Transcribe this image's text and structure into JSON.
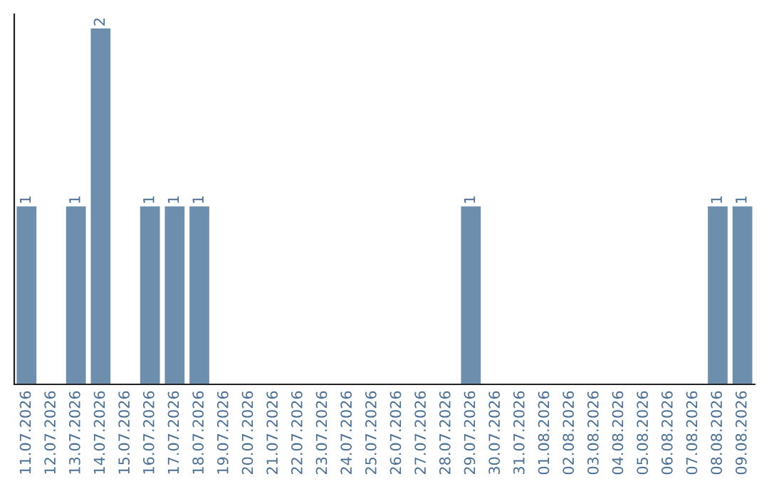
{
  "chart_data": {
    "type": "bar",
    "categories": [
      "11.07.2026",
      "12.07.2026",
      "13.07.2026",
      "14.07.2026",
      "15.07.2026",
      "16.07.2026",
      "17.07.2026",
      "18.07.2026",
      "19.07.2026",
      "20.07.2026",
      "21.07.2026",
      "22.07.2026",
      "23.07.2026",
      "24.07.2026",
      "25.07.2026",
      "26.07.2026",
      "27.07.2026",
      "28.07.2026",
      "29.07.2026",
      "30.07.2026",
      "31.07.2026",
      "01.08.2026",
      "02.08.2026",
      "03.08.2026",
      "04.08.2026",
      "05.08.2026",
      "06.08.2026",
      "07.08.2026",
      "08.08.2026",
      "09.08.2026"
    ],
    "values": [
      1,
      0,
      1,
      2,
      0,
      1,
      1,
      1,
      0,
      0,
      0,
      0,
      0,
      0,
      0,
      0,
      0,
      0,
      1,
      0,
      0,
      0,
      0,
      0,
      0,
      0,
      0,
      0,
      1,
      1
    ],
    "value_labels": [
      "1",
      null,
      "1",
      "2",
      null,
      "1",
      "1",
      "1",
      null,
      null,
      null,
      null,
      null,
      null,
      null,
      null,
      null,
      null,
      "1",
      null,
      null,
      null,
      null,
      null,
      null,
      null,
      null,
      null,
      "1",
      "1"
    ],
    "color": "#6d8fad",
    "ylim": [
      0,
      2.08
    ],
    "tick_labels": "x",
    "grid": false,
    "legend": false
  }
}
